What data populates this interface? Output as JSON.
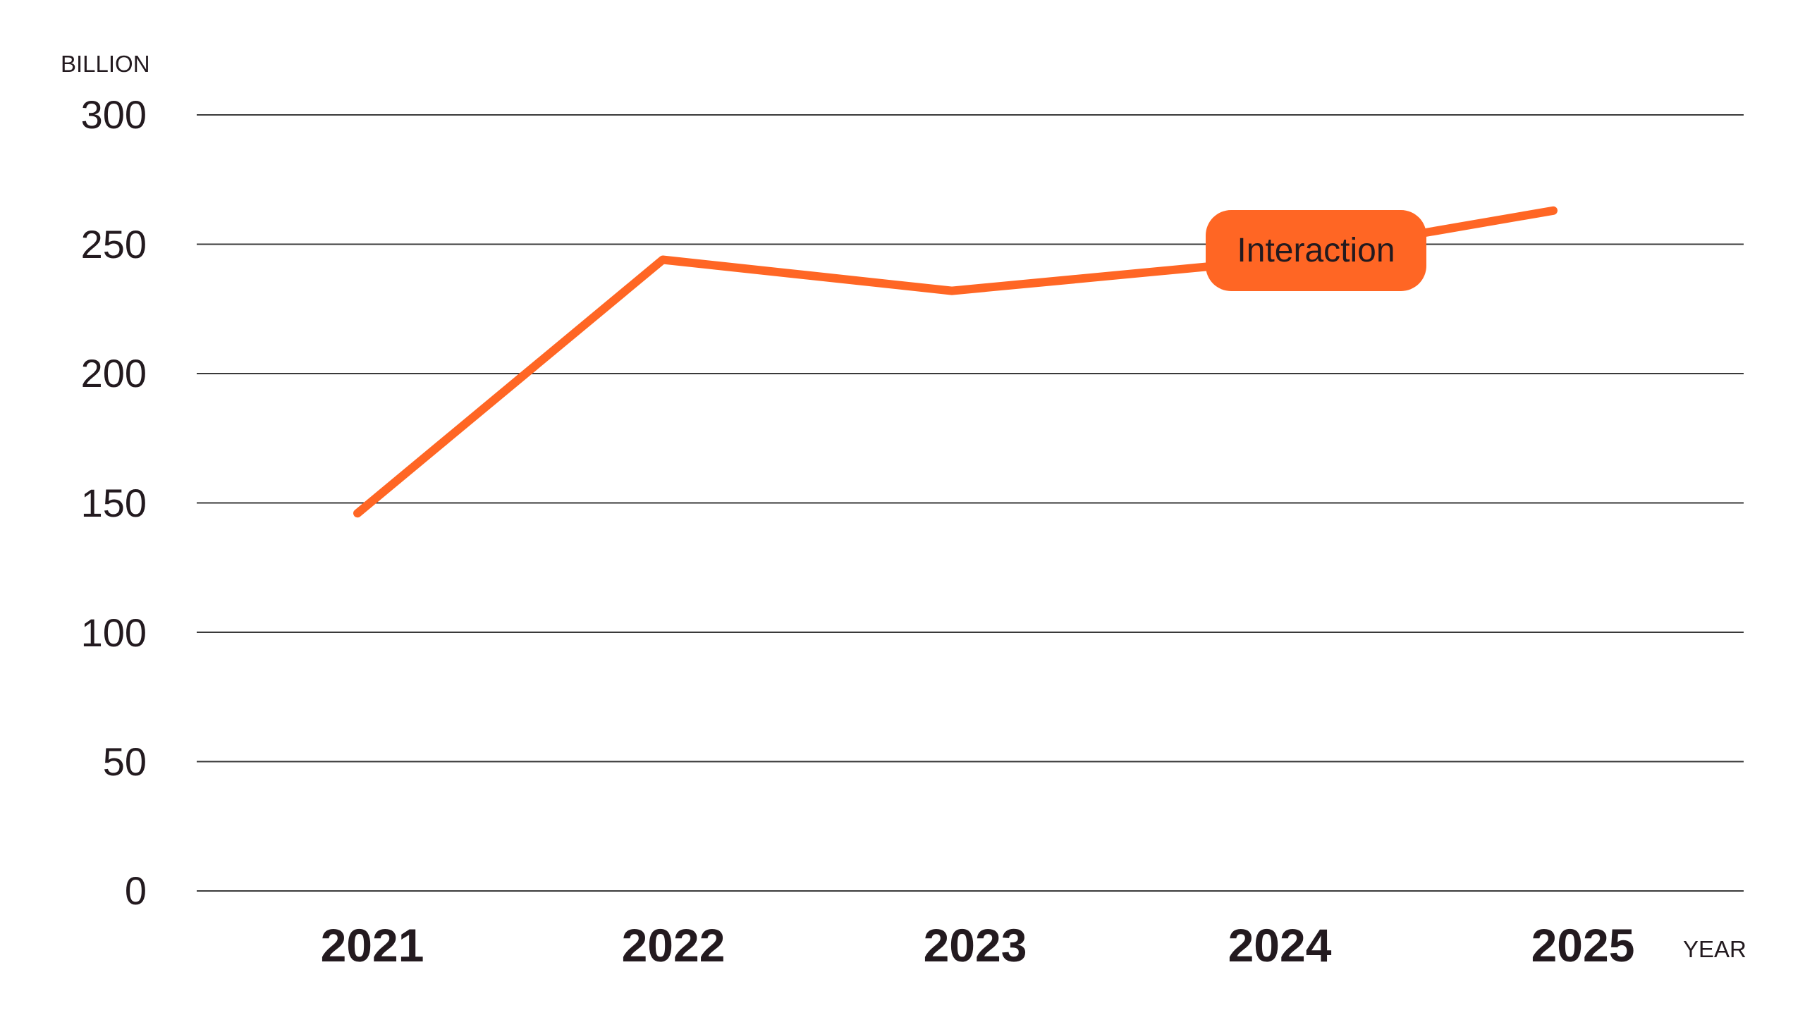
{
  "chart_data": {
    "type": "line",
    "title": "",
    "xlabel": "YEAR",
    "ylabel": "BILLION",
    "categories": [
      "2021",
      "2022",
      "2023",
      "2024",
      "2025"
    ],
    "series": [
      {
        "name": "Interaction",
        "color": "#ff6624",
        "values": [
          146,
          244,
          232,
          243,
          263
        ]
      }
    ],
    "yticks": [
      "0",
      "50",
      "100",
      "150",
      "200",
      "250",
      "300"
    ],
    "ylim": [
      0,
      300
    ],
    "grid": "horizontal",
    "legend": "inline label on line near 2024",
    "annotations": [
      {
        "text": "Interaction",
        "x": "2024",
        "style": "orange rounded label"
      }
    ]
  },
  "axis": {
    "y_unit": "BILLION",
    "x_unit": "YEAR",
    "y_ticks": [
      "300",
      "250",
      "200",
      "150",
      "100",
      "50",
      "0"
    ],
    "x_ticks": [
      "2021",
      "2022",
      "2023",
      "2024",
      "2025"
    ]
  },
  "series_label": "Interaction",
  "colors": {
    "line": "#ff6624",
    "text": "#231a1f",
    "grid": "#3a3a3a"
  }
}
